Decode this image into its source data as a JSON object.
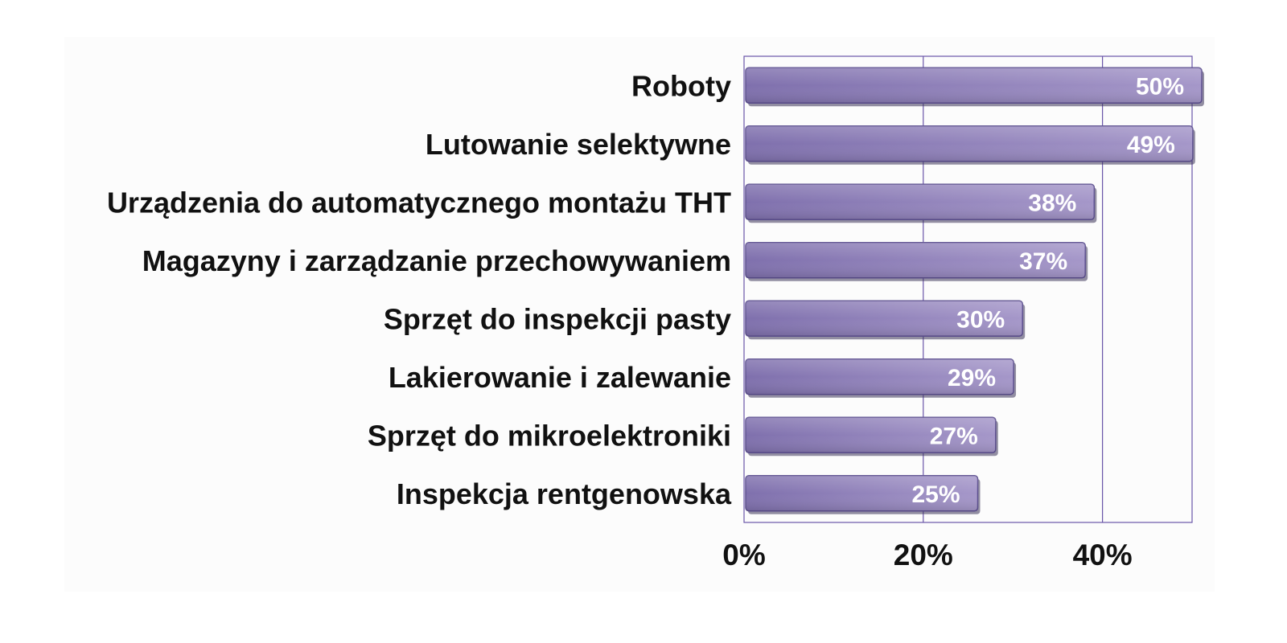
{
  "chart_data": {
    "type": "bar",
    "orientation": "horizontal",
    "categories": [
      "Roboty",
      "Lutowanie selektywne",
      "Urządzenia do automatycznego montażu THT",
      "Magazyny i zarządzanie przechowywaniem",
      "Sprzęt do inspekcji pasty",
      "Lakierowanie i zalewanie",
      "Sprzęt do mikroelektroniki",
      "Inspekcja rentgenowska"
    ],
    "values": [
      50,
      49,
      38,
      37,
      30,
      29,
      27,
      25
    ],
    "value_labels": [
      "50%",
      "49%",
      "38%",
      "37%",
      "30%",
      "29%",
      "27%",
      "25%"
    ],
    "x_ticks": [
      {
        "value": 0,
        "label": "0%"
      },
      {
        "value": 20,
        "label": "20%"
      },
      {
        "value": 40,
        "label": "40%"
      }
    ],
    "xlim": [
      0,
      50
    ],
    "grid": true,
    "bar_color": "#8e80b8",
    "bar_edge_color": "#5c4f8f",
    "grid_color": "#6a55a8"
  }
}
